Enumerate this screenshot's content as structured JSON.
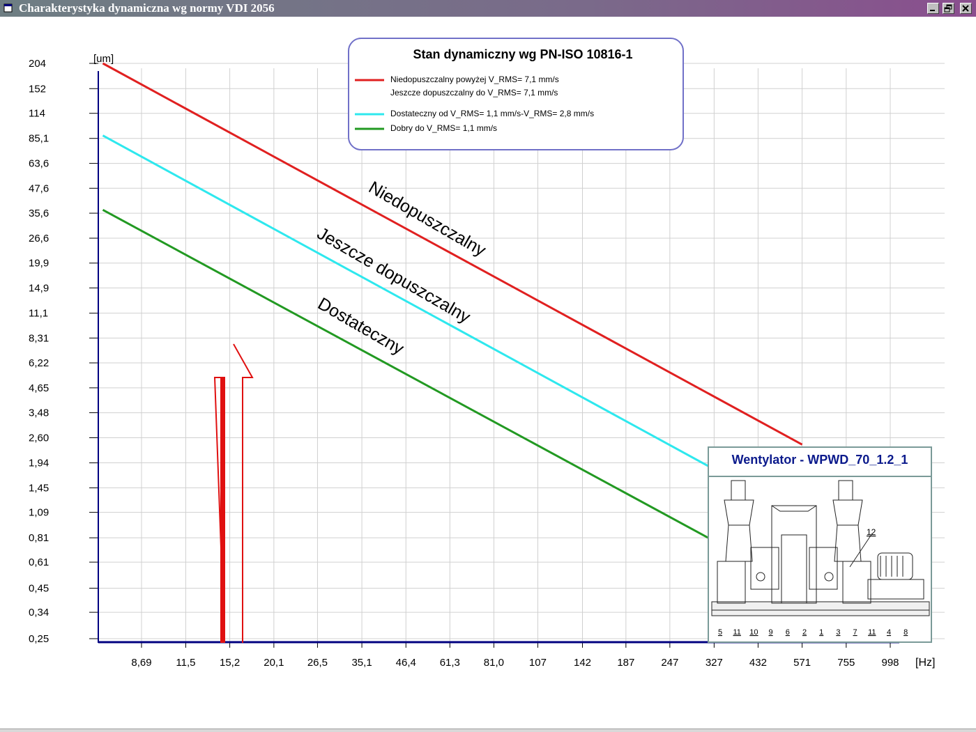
{
  "window": {
    "title": "Charakterystyka dynamiczna wg normy VDI 2056",
    "controls": [
      "minimize",
      "restore",
      "close"
    ]
  },
  "legend": {
    "title": "Stan dynamiczny wg PN-ISO 10816-1",
    "items": [
      {
        "color": "#e02020",
        "lines": [
          "Niedopuszczalny powyżej V_RMS= 7,1 mm/s",
          "Jeszcze dopuszczalny do V_RMS= 7,1 mm/s"
        ]
      },
      {
        "color": "#2ee8ee",
        "lines": [
          "Dostateczny od V_RMS= 1,1 mm/s-V_RMS= 2,8 mm/s"
        ]
      },
      {
        "color": "#229922",
        "lines": [
          "Dobry  do V_RMS= 1,1 mm/s"
        ]
      }
    ]
  },
  "zone_labels": [
    "Niedopuszczalny",
    "Jeszcze dopuszczalny",
    "Dostateczny"
  ],
  "machine": {
    "title": "Wentylator - WPWD_70_1.2_1",
    "callout": "12",
    "part_numbers": [
      "5",
      "11",
      "10",
      "9",
      "6",
      "2",
      "1",
      "3",
      "7",
      "11",
      "4",
      "8"
    ]
  },
  "chart_data": {
    "type": "line",
    "ylabel": "[um]",
    "xlabel": "[Hz]",
    "y_ticks": [
      "0,25",
      "0,34",
      "0,45",
      "0,61",
      "0,81",
      "1,09",
      "1,45",
      "1,94",
      "2,60",
      "3,48",
      "4,65",
      "6,22",
      "8,31",
      "11,1",
      "14,9",
      "19,9",
      "26,6",
      "35,6",
      "47,6",
      "63,6",
      "85,1",
      "114",
      "152",
      "204"
    ],
    "x_ticks": [
      "8,69",
      "11,5",
      "15,2",
      "20,1",
      "26,5",
      "35,1",
      "46,4",
      "61,3",
      "81,0",
      "107",
      "142",
      "187",
      "247",
      "327",
      "432",
      "571",
      "755",
      "998"
    ],
    "x_scale": "log",
    "y_scale": "log",
    "grid": true,
    "series": [
      {
        "color": "#e02020",
        "x": [
          6.8,
          571
        ],
        "y": [
          204,
          2.4
        ]
      },
      {
        "color": "#2ee8ee",
        "x": [
          6.8,
          327
        ],
        "y": [
          88,
          1.8
        ]
      },
      {
        "color": "#229922",
        "x": [
          6.8,
          327
        ],
        "y": [
          37,
          0.78
        ]
      }
    ],
    "marker": {
      "x": 15.2,
      "y": 8.31
    }
  }
}
